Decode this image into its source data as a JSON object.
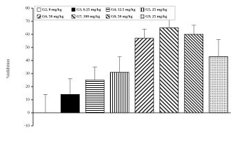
{
  "chart_data": {
    "type": "bar",
    "y_label": "%inhibition",
    "categories": [
      null
    ],
    "ylim": [
      -10,
      80
    ],
    "yticks": [
      -10,
      0,
      10,
      20,
      30,
      40,
      50,
      60,
      70,
      80
    ],
    "legend": "top",
    "series": [
      {
        "name": "G2, 0 mg/kg",
        "color": "#000000",
        "pattern": "none",
        "values": [
          0
        ],
        "errors": [
          14
        ]
      },
      {
        "name": "G3, 6.25 mg/kg",
        "color": "#000000",
        "pattern": "solid",
        "values": [
          14
        ],
        "errors": [
          12
        ]
      },
      {
        "name": "G4, 12.5 mg/kg",
        "color": "#000000",
        "pattern": "horizontal",
        "values": [
          25
        ],
        "errors": [
          10
        ]
      },
      {
        "name": "G5, 25 mg/kg",
        "color": "#000000",
        "pattern": "vertical",
        "values": [
          31
        ],
        "errors": [
          12
        ]
      },
      {
        "name": "G6, 50 mg/kg",
        "color": "#000000",
        "pattern": "diagonal-down",
        "values": [
          57
        ],
        "errors": [
          7
        ]
      },
      {
        "name": "G7, 100 mg/kg",
        "color": "#000000",
        "pattern": "diagonal-up",
        "values": [
          65
        ],
        "errors": [
          7
        ]
      },
      {
        "name": "G8, 50 mg/kg",
        "color": "#000000",
        "pattern": "diagonal-dense",
        "values": [
          60
        ],
        "errors": [
          7
        ]
      },
      {
        "name": "G9, 25 mg/kg",
        "color": "#000000",
        "pattern": "dots",
        "values": [
          43
        ],
        "errors": [
          13
        ]
      }
    ]
  }
}
